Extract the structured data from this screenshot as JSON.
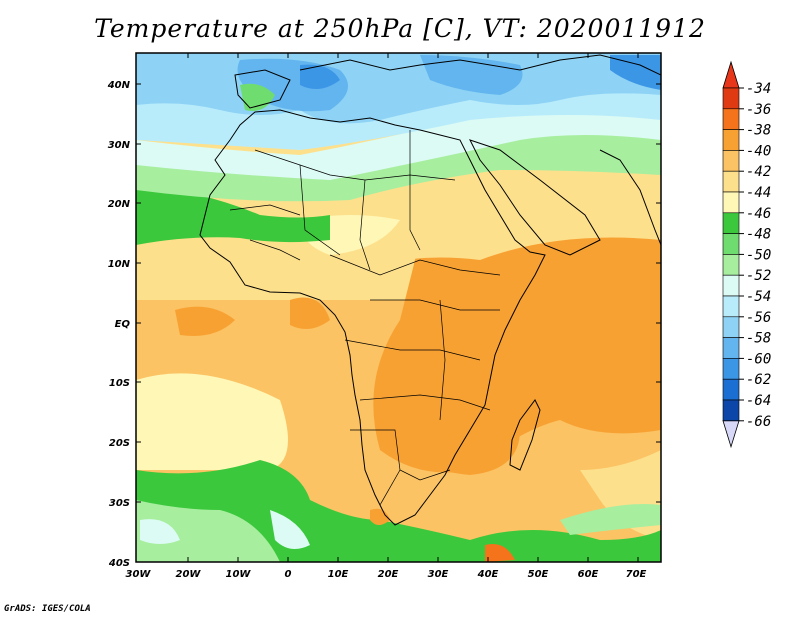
{
  "title": "Temperature at 250hPa [C], VT: 2020011912",
  "credit": "GrADS: IGES/COLA",
  "map": {
    "lat_labels": [
      "40N",
      "30N",
      "20N",
      "10N",
      "EQ",
      "10S",
      "20S",
      "30S",
      "40S"
    ],
    "lon_labels": [
      "30W",
      "20W",
      "10W",
      "0",
      "10E",
      "20E",
      "30E",
      "40E",
      "50E",
      "60E",
      "70E"
    ]
  },
  "colorbar": {
    "levels": [
      "-34",
      "-36",
      "-38",
      "-40",
      "-42",
      "-44",
      "-46",
      "-48",
      "-50",
      "-52",
      "-54",
      "-56",
      "-58",
      "-60",
      "-62",
      "-64",
      "-66"
    ],
    "colors": [
      "#e03a12",
      "#f4731b",
      "#f8a133",
      "#fbc363",
      "#fde08c",
      "#fff7b6",
      "#3cc83c",
      "#6fdc6f",
      "#a7ee9f",
      "#dcfbf4",
      "#b9ecfb",
      "#8ed3f5",
      "#63b5ef",
      "#3c96e6",
      "#1c6fd2",
      "#0b46a8",
      "#072478"
    ],
    "top_color": "#e8361b",
    "bottom_color": "#d8d8f8"
  }
}
